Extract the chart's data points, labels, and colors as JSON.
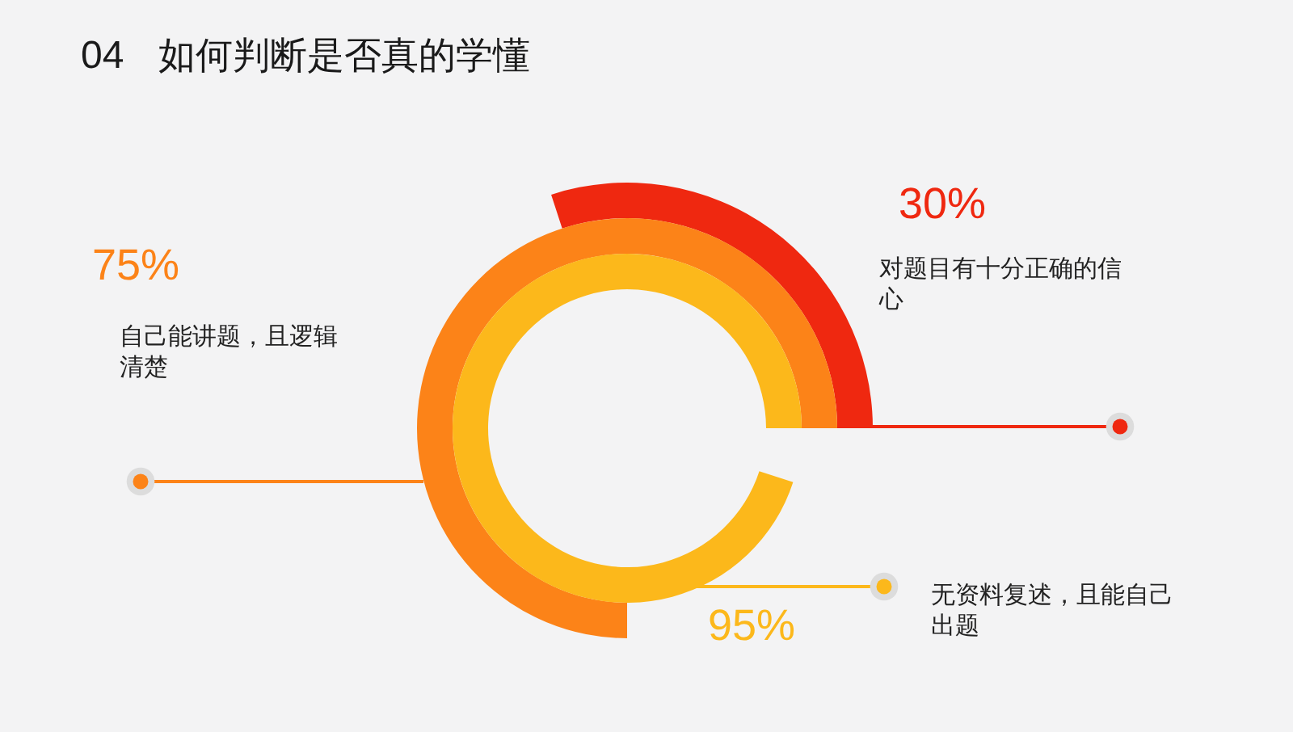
{
  "chart_data": {
    "type": "other",
    "title": "如何判断是否真的学懂",
    "annotations": [
      "04"
    ],
    "categories": [
      "对题目有十分正确的信心",
      "自己能讲题，且逻辑清楚",
      "无资料复述，且能自己出题"
    ],
    "values": [
      30,
      75,
      95
    ],
    "value_labels": [
      "30%",
      "75%",
      "95%"
    ],
    "colors": [
      "#ef2810",
      "#fc8318",
      "#fcb81b"
    ]
  }
}
